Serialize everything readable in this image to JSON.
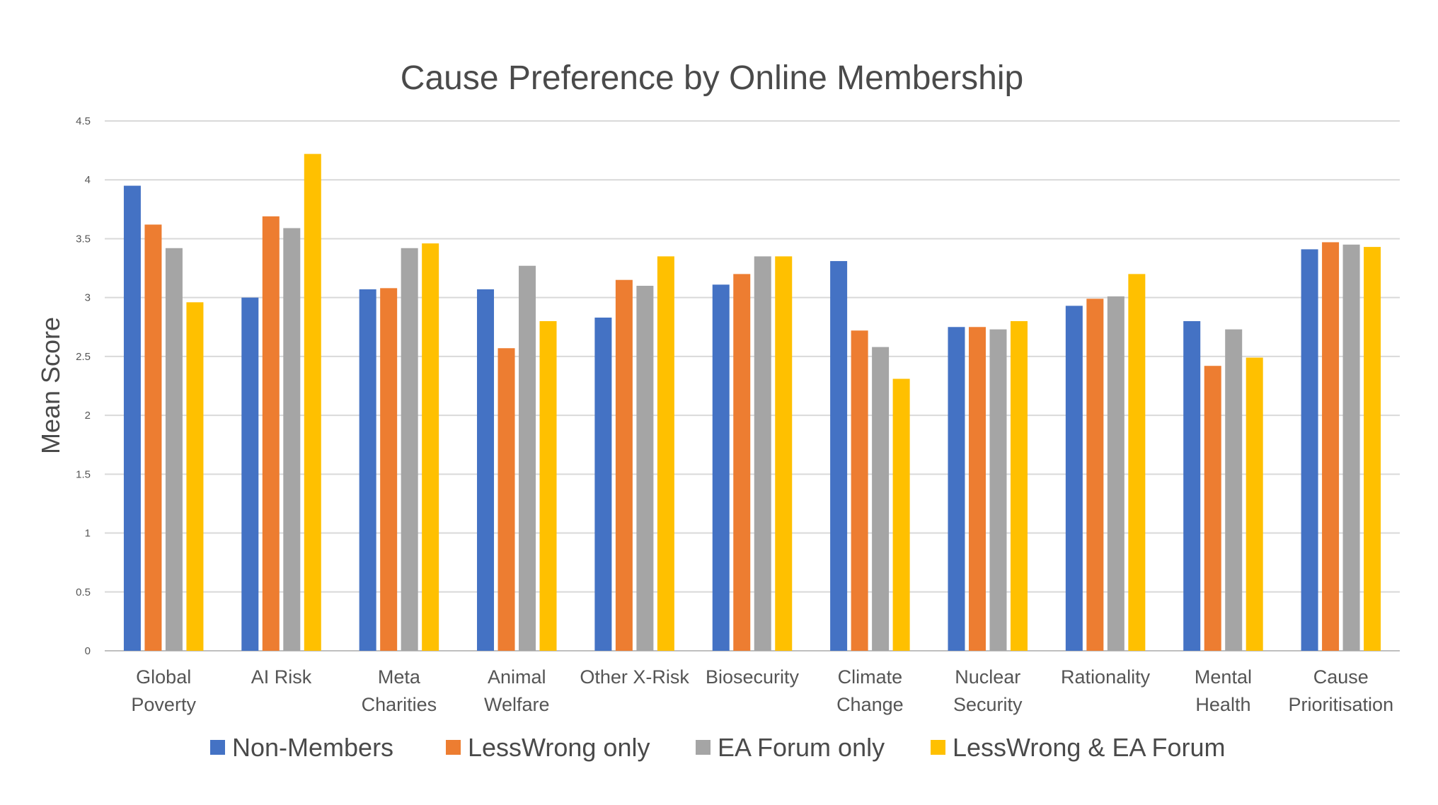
{
  "chart_data": {
    "type": "bar",
    "title": "Cause Preference by Online Membership",
    "xlabel": "",
    "ylabel": "Mean Score",
    "ylim": [
      0,
      4.5
    ],
    "yticks": [
      "0",
      "0.5",
      "1",
      "1.5",
      "2",
      "2.5",
      "3",
      "3.5",
      "4",
      "4.5"
    ],
    "grid": true,
    "legend_position": "bottom",
    "categories": [
      [
        "Global",
        "Poverty"
      ],
      [
        "AI Risk"
      ],
      [
        "Meta",
        "Charities"
      ],
      [
        "Animal",
        "Welfare"
      ],
      [
        "Other X-Risk"
      ],
      [
        "Biosecurity"
      ],
      [
        "Climate",
        "Change"
      ],
      [
        "Nuclear",
        "Security"
      ],
      [
        "Rationality"
      ],
      [
        "Mental",
        "Health"
      ],
      [
        "Cause",
        "Prioritisation"
      ]
    ],
    "series": [
      {
        "name": "Non-Members",
        "color": "#4472C4",
        "values": [
          3.95,
          3.0,
          3.07,
          3.07,
          2.83,
          3.11,
          3.31,
          2.75,
          2.93,
          2.8,
          3.41
        ]
      },
      {
        "name": "LessWrong only",
        "color": "#ED7D31",
        "values": [
          3.62,
          3.69,
          3.08,
          2.57,
          3.15,
          3.2,
          2.72,
          2.75,
          2.99,
          2.42,
          3.47
        ]
      },
      {
        "name": "EA Forum only",
        "color": "#A5A5A5",
        "values": [
          3.42,
          3.59,
          3.42,
          3.27,
          3.1,
          3.35,
          2.58,
          2.73,
          3.01,
          2.73,
          3.45
        ]
      },
      {
        "name": "LessWrong & EA Forum",
        "color": "#FFC000",
        "values": [
          2.96,
          4.22,
          3.46,
          2.8,
          3.35,
          3.35,
          2.31,
          2.8,
          3.2,
          2.49,
          3.43
        ]
      }
    ]
  }
}
